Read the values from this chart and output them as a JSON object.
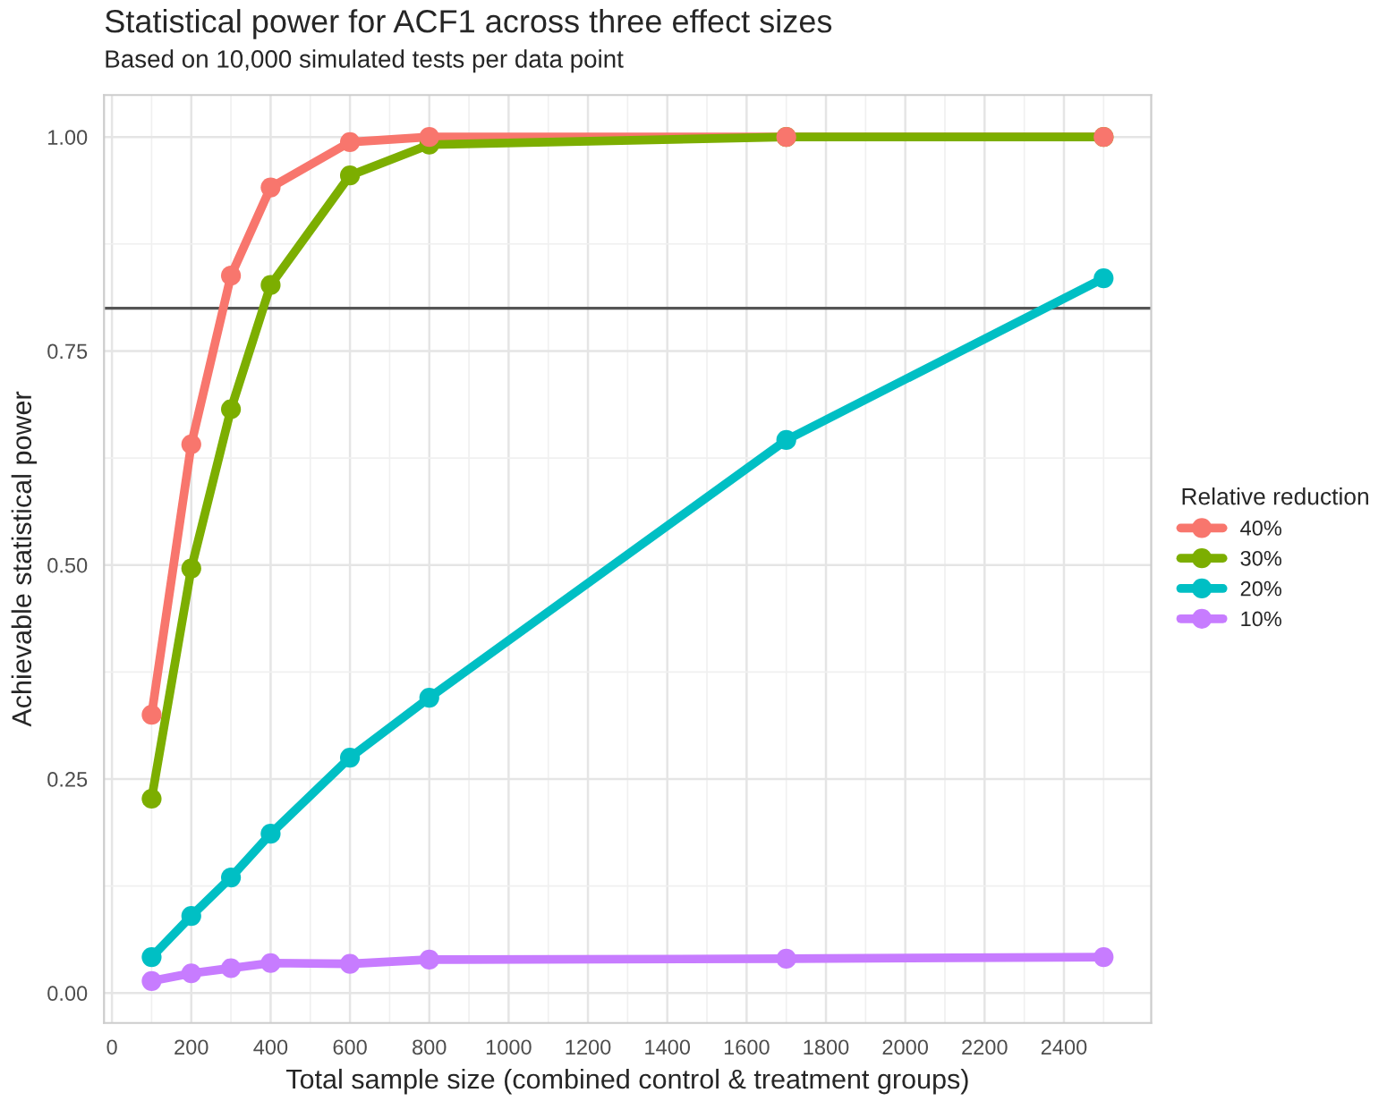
{
  "chart_data": {
    "type": "line",
    "title": "Statistical power for ACF1 across three effect sizes",
    "subtitle": "Based on 10,000 simulated tests per data point",
    "xlabel": "Total sample size (combined control & treatment groups)",
    "ylabel": "Achievable statistical power",
    "legend_title": "Relative reduction",
    "x": [
      100,
      200,
      300,
      400,
      600,
      800,
      1700,
      2500
    ],
    "series": [
      {
        "name": "40%",
        "color": "#f8766d",
        "values": [
          0.325,
          0.641,
          0.838,
          0.941,
          0.994,
          1.0,
          1.0,
          1.0
        ]
      },
      {
        "name": "30%",
        "color": "#7cae00",
        "values": [
          0.227,
          0.496,
          0.682,
          0.827,
          0.955,
          0.991,
          1.0,
          1.0
        ]
      },
      {
        "name": "20%",
        "color": "#00bfc4",
        "values": [
          0.042,
          0.09,
          0.135,
          0.186,
          0.275,
          0.345,
          0.646,
          0.835
        ]
      },
      {
        "name": "10%",
        "color": "#c77cff",
        "values": [
          0.014,
          0.023,
          0.029,
          0.035,
          0.034,
          0.039,
          0.04,
          0.042
        ]
      }
    ],
    "xlim": [
      -20,
      2620
    ],
    "ylim": [
      -0.035,
      1.049
    ],
    "xticks": [
      0,
      200,
      400,
      600,
      800,
      1000,
      1200,
      1400,
      1600,
      1800,
      2000,
      2200,
      2400
    ],
    "yticks": [
      {
        "value": 0,
        "label": "0.00"
      },
      {
        "value": 0.25,
        "label": "0.25"
      },
      {
        "value": 0.5,
        "label": "0.50"
      },
      {
        "value": 0.75,
        "label": "0.75"
      },
      {
        "value": 1,
        "label": "1.00"
      }
    ],
    "ref_lines": [
      {
        "axis": "y",
        "value": 0.8,
        "label": null,
        "color": "#555555",
        "line_style": "solid"
      }
    ],
    "grid": true,
    "legend": "right",
    "marker": "circle",
    "line_style": "solid"
  }
}
